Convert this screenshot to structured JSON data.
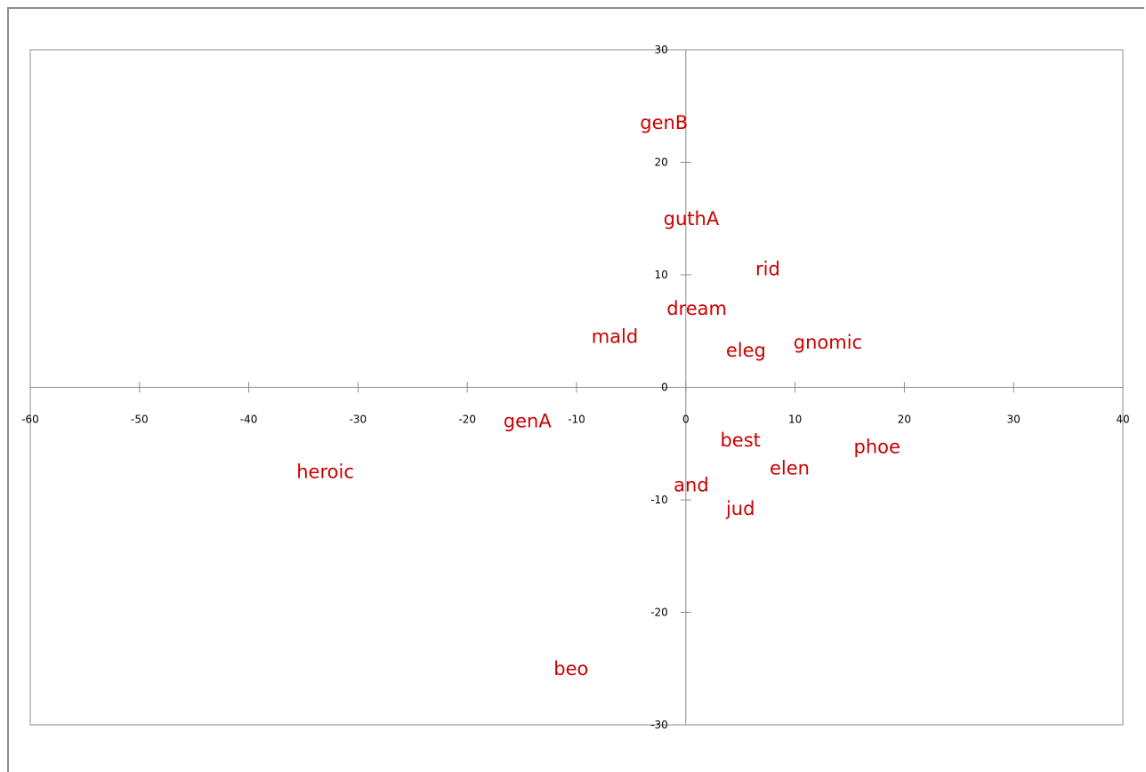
{
  "chart_data": {
    "type": "scatter",
    "title": "",
    "xlabel": "",
    "ylabel": "",
    "xlim": [
      -60,
      40
    ],
    "ylim": [
      -30,
      30
    ],
    "grid": false,
    "axes_cross_at_origin": true,
    "label_color": "#cc0000",
    "x_ticks": [
      -60,
      -50,
      -40,
      -30,
      -20,
      -10,
      0,
      10,
      20,
      30,
      40
    ],
    "y_ticks": [
      -30,
      -20,
      -10,
      0,
      10,
      20,
      30
    ],
    "points": [
      {
        "label": "genB",
        "x": -2.0,
        "y": 23.5
      },
      {
        "label": "guthA",
        "x": 0.5,
        "y": 15.0
      },
      {
        "label": "rid",
        "x": 7.5,
        "y": 10.5
      },
      {
        "label": "dream",
        "x": 1.0,
        "y": 7.0
      },
      {
        "label": "mald",
        "x": -6.5,
        "y": 4.5
      },
      {
        "label": "eleg",
        "x": 5.5,
        "y": 3.3
      },
      {
        "label": "gnomic",
        "x": 13.0,
        "y": 4.0
      },
      {
        "label": "genA",
        "x": -14.5,
        "y": -3.0
      },
      {
        "label": "best",
        "x": 5.0,
        "y": -4.7
      },
      {
        "label": "phoe",
        "x": 17.5,
        "y": -5.3
      },
      {
        "label": "heroic",
        "x": -33.0,
        "y": -7.5
      },
      {
        "label": "elen",
        "x": 9.5,
        "y": -7.2
      },
      {
        "label": "and",
        "x": 0.5,
        "y": -8.7
      },
      {
        "label": "jud",
        "x": 5.0,
        "y": -10.8
      },
      {
        "label": "beo",
        "x": -10.5,
        "y": -25.0
      }
    ]
  }
}
